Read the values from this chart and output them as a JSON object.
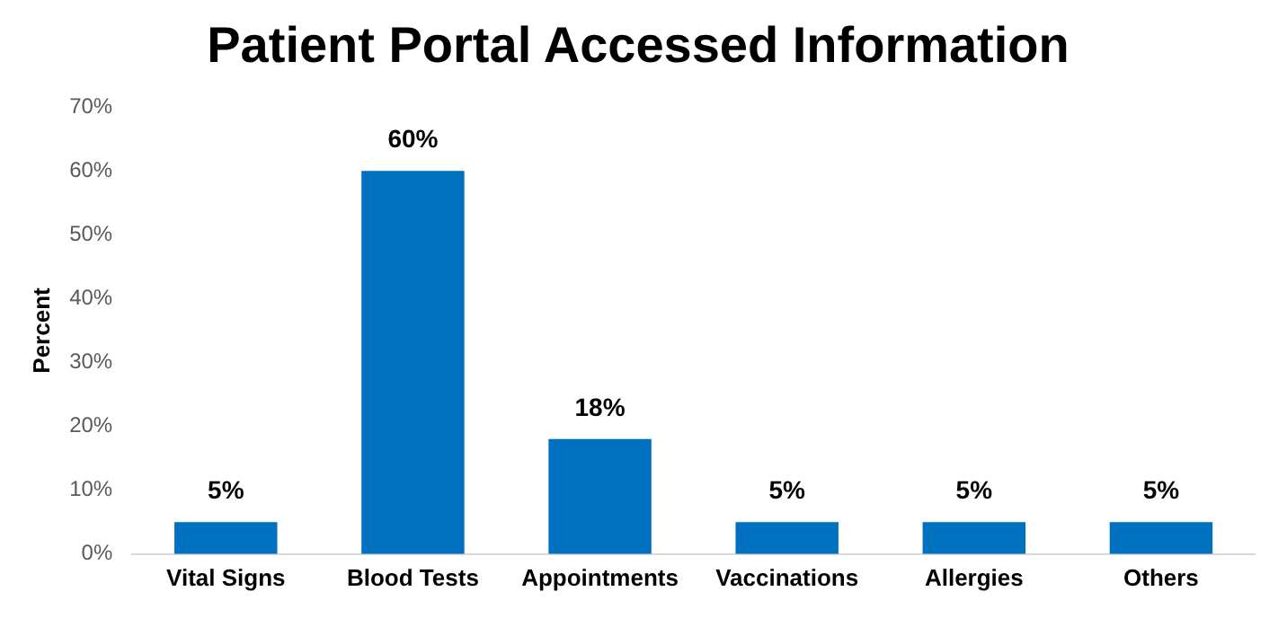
{
  "chart_data": {
    "type": "bar",
    "title": "Patient Portal Accessed Information",
    "ylabel": "Percent",
    "categories": [
      "Vital Signs",
      "Blood Tests",
      "Appointments",
      "Vaccinations",
      "Allergies",
      "Others"
    ],
    "values": [
      5,
      60,
      18,
      5,
      5,
      5
    ],
    "color": "#0070c0",
    "value_labels": [
      "5%",
      "60%",
      "18%",
      "5%",
      "5%",
      "5%"
    ],
    "ylim": [
      0,
      70
    ],
    "yticks": [
      {
        "value": 0,
        "label": "0%"
      },
      {
        "value": 10,
        "label": "10%"
      },
      {
        "value": 20,
        "label": "20%"
      },
      {
        "value": 30,
        "label": "30%"
      },
      {
        "value": 40,
        "label": "40%"
      },
      {
        "value": 50,
        "label": "50%"
      },
      {
        "value": 60,
        "label": "60%"
      },
      {
        "value": 70,
        "label": "70%"
      }
    ],
    "grid": false,
    "legend": false
  }
}
